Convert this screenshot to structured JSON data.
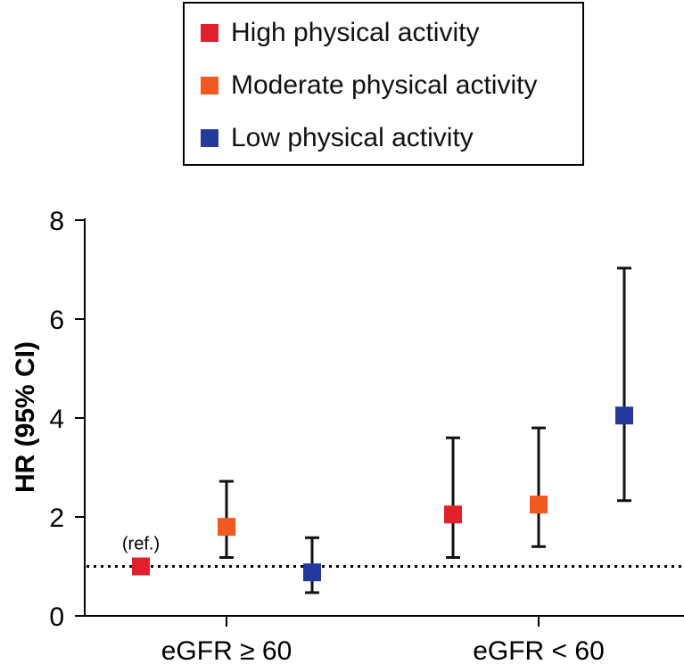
{
  "chart_data": {
    "type": "scatter",
    "ylabel": "HR (95% CI)",
    "xlabel": "",
    "ylim": [
      0,
      8
    ],
    "yticks": [
      0,
      2,
      4,
      6,
      8
    ],
    "categories": [
      "eGFR ≥ 60",
      "eGFR < 60"
    ],
    "reference_line": {
      "y": 1.0,
      "style": "dotted"
    },
    "annotation": "(ref.)",
    "legend_position": "top-center",
    "series": [
      {
        "name": "High physical activity",
        "color": "#e0202a",
        "points": [
          {
            "category": "eGFR ≥ 60",
            "hr": 1.0,
            "ci_low": null,
            "ci_high": null
          },
          {
            "category": "eGFR < 60",
            "hr": 2.05,
            "ci_low": 1.18,
            "ci_high": 3.6
          }
        ]
      },
      {
        "name": "Moderate physical activity",
        "color": "#f05a22",
        "points": [
          {
            "category": "eGFR ≥ 60",
            "hr": 1.8,
            "ci_low": 1.18,
            "ci_high": 2.72
          },
          {
            "category": "eGFR < 60",
            "hr": 2.25,
            "ci_low": 1.4,
            "ci_high": 3.8
          }
        ]
      },
      {
        "name": "Low physical activity",
        "color": "#233a9c",
        "points": [
          {
            "category": "eGFR ≥ 60",
            "hr": 0.88,
            "ci_low": 0.47,
            "ci_high": 1.58
          },
          {
            "category": "eGFR < 60",
            "hr": 4.05,
            "ci_low": 2.33,
            "ci_high": 7.03
          }
        ]
      }
    ]
  }
}
